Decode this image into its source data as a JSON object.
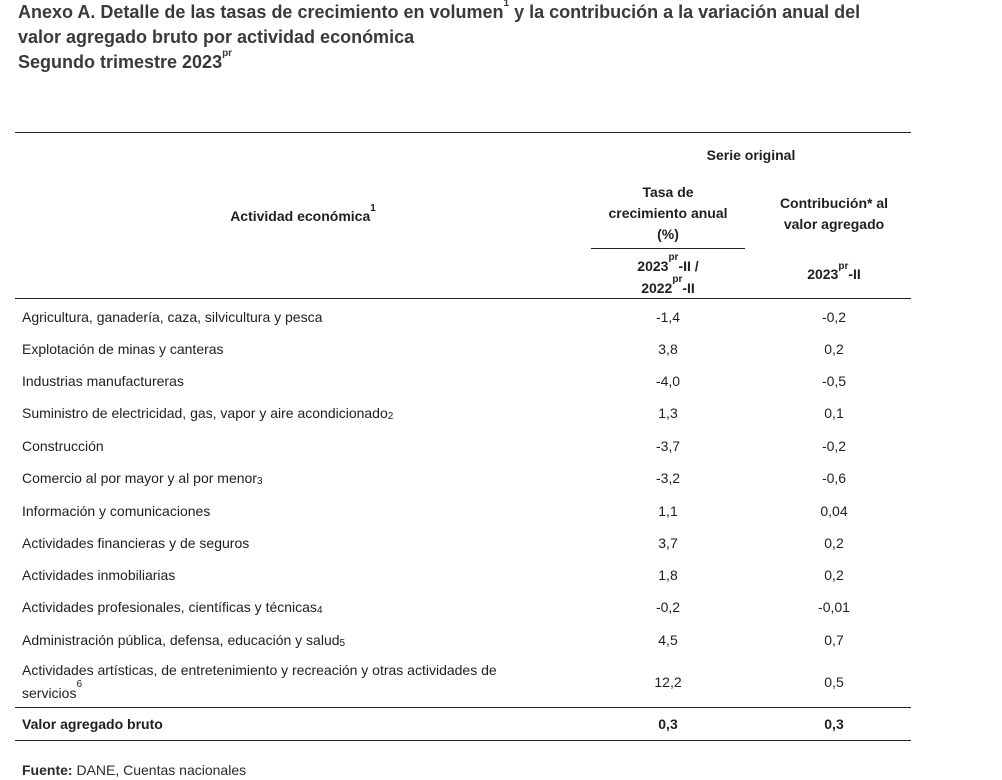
{
  "title": {
    "line1_a": "Anexo A. Detalle de las tasas de crecimiento en volumen",
    "line1_sup": "1",
    "line1_b": " y la contribución a la variación anual del",
    "line2": "valor agregado bruto por actividad económica",
    "line3_a": "Segundo trimestre 2023",
    "line3_sup": "pr"
  },
  "table": {
    "header": {
      "activity": "Actividad económica",
      "activity_sup": "1",
      "serie": "Serie original",
      "col1_l1": "Tasa de",
      "col1_l2": "crecimiento anual",
      "col1_l3": "(%)",
      "col2_l1": "Contribución* al",
      "col2_l2": "valor agregado",
      "col1_period_a": "2023",
      "col1_period_sup1": "pr",
      "col1_period_b": "-II /",
      "col1_period_c": "2022",
      "col1_period_sup2": "pr",
      "col1_period_d": "-II",
      "col2_period_a": "2023",
      "col2_period_sup": "pr",
      "col2_period_b": "-II"
    },
    "rows": [
      {
        "label": "Agricultura, ganadería, caza, silvicultura y pesca",
        "sup": "",
        "growth": "-1,4",
        "contribution": "-0,2"
      },
      {
        "label": "Explotación de minas y canteras",
        "sup": "",
        "growth": "3,8",
        "contribution": "0,2"
      },
      {
        "label": "Industrias manufactureras",
        "sup": "",
        "growth": "-4,0",
        "contribution": "-0,5"
      },
      {
        "label": "Suministro de electricidad, gas, vapor y aire acondicionado",
        "sup": "2",
        "growth": "1,3",
        "contribution": "0,1"
      },
      {
        "label": "Construcción",
        "sup": "",
        "growth": "-3,7",
        "contribution": "-0,2"
      },
      {
        "label": "Comercio al por mayor y al por menor",
        "sup": "3",
        "growth": "-3,2",
        "contribution": "-0,6"
      },
      {
        "label": "Información y comunicaciones",
        "sup": "",
        "growth": "1,1",
        "contribution": "0,04"
      },
      {
        "label": "Actividades financieras y de seguros",
        "sup": "",
        "growth": "3,7",
        "contribution": "0,2"
      },
      {
        "label": "Actividades inmobiliarias",
        "sup": "",
        "growth": "1,8",
        "contribution": "0,2"
      },
      {
        "label": "Actividades profesionales, científicas y técnicas",
        "sup": "4",
        "growth": "-0,2",
        "contribution": "-0,01"
      },
      {
        "label": "Administración pública, defensa, educación y salud",
        "sup": "5",
        "growth": "4,5",
        "contribution": "0,7"
      },
      {
        "label_l1": "Actividades artísticas, de entretenimiento y recreación y otras actividades de",
        "label": "servicios",
        "sup": "6",
        "growth": "12,2",
        "contribution": "0,5"
      }
    ],
    "total": {
      "label": "Valor agregado bruto",
      "growth": "0,3",
      "contribution": "0,3"
    }
  },
  "source": {
    "label": "Fuente:",
    "text": " DANE, Cuentas nacionales"
  }
}
